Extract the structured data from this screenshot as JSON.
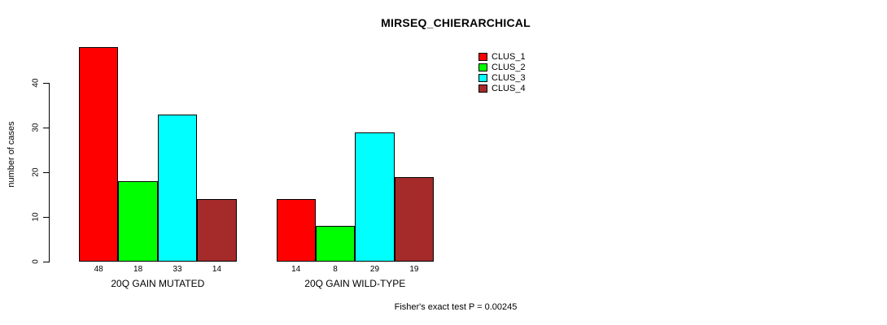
{
  "chart_data": {
    "type": "bar",
    "title": "MIRSEQ_CHIERARCHICAL",
    "ylabel": "number of cases",
    "xlabel": "",
    "categories": [
      "20Q GAIN MUTATED",
      "20Q GAIN WILD-TYPE"
    ],
    "series": [
      {
        "name": "CLUS_1",
        "color": "#FF0000",
        "values": [
          48,
          14
        ]
      },
      {
        "name": "CLUS_2",
        "color": "#00FF00",
        "values": [
          18,
          8
        ]
      },
      {
        "name": "CLUS_3",
        "color": "#00FFFF",
        "values": [
          33,
          29
        ]
      },
      {
        "name": "CLUS_4",
        "color": "#A52A2A",
        "values": [
          14,
          19
        ]
      }
    ],
    "yticks": [
      0,
      10,
      20,
      30,
      40
    ],
    "ylim": [
      0,
      48
    ],
    "bar_value_labels": true,
    "grid": false,
    "legend_position": "top-right",
    "annotation": "Fisher's exact test P = 0.00245"
  }
}
